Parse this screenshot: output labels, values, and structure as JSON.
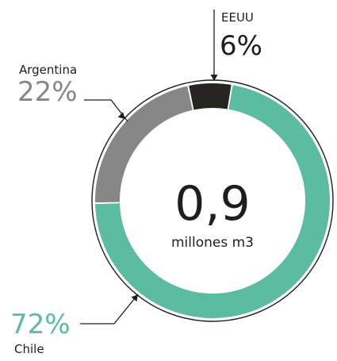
{
  "chart_data": {
    "type": "pie",
    "style": "donut",
    "center_value": "0,9",
    "center_unit": "millones m3",
    "slices": [
      {
        "label": "EEUU",
        "value": 6,
        "value_label": "6%",
        "color": "#262522"
      },
      {
        "label": "Chile",
        "value": 72,
        "value_label": "72%",
        "color": "#5bbca1"
      },
      {
        "label": "Argentina",
        "value": 22,
        "value_label": "22%",
        "color": "#878787"
      }
    ],
    "start_angle_deg": -12,
    "direction": "clockwise",
    "outline_color": "#1e1e1e"
  }
}
